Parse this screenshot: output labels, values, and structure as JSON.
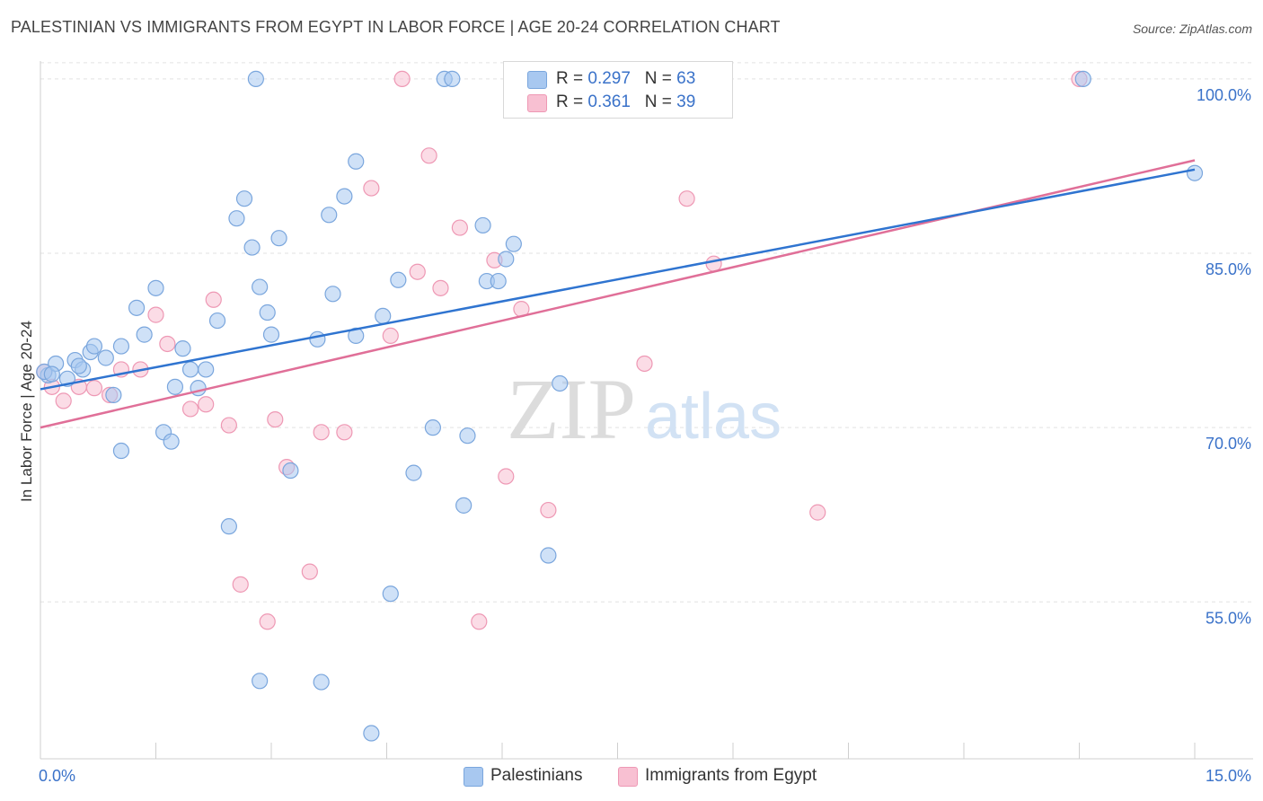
{
  "title": "PALESTINIAN VS IMMIGRANTS FROM EGYPT IN LABOR FORCE | AGE 20-24 CORRELATION CHART",
  "source": "Source: ZipAtlas.com",
  "watermark": {
    "zip": "ZIP",
    "atlas": "atlas"
  },
  "legend": {
    "rows": [
      {
        "r_label": "R = ",
        "r_value": "0.297",
        "n_label": "N = ",
        "n_value": "63",
        "color": "#a8c8f0"
      },
      {
        "r_label": "R = ",
        "r_value": "0.361",
        "n_label": "N = ",
        "n_value": "39",
        "color": "#f8b8cc"
      }
    ]
  },
  "colors": {
    "blue_fill": "#a8c8f0",
    "blue_stroke": "#7aa6dd",
    "blue_line": "#2f74d0",
    "pink_fill": "#f8c0d2",
    "pink_stroke": "#ee98b4",
    "pink_line": "#e06f98",
    "tick_label": "#3a72c9",
    "grid": "#e2e2e2"
  },
  "chart_data": {
    "type": "scatter",
    "title": "PALESTINIAN VS IMMIGRANTS FROM EGYPT IN LABOR FORCE | AGE 20-24 CORRELATION CHART",
    "xlabel": "",
    "ylabel": "In Labor Force | Age 20-24",
    "xlim": [
      0,
      15
    ],
    "ylim": [
      41.5,
      102
    ],
    "x_tick_labels": [
      "0.0%",
      "15.0%"
    ],
    "y_ticks": [
      55,
      70,
      85,
      100
    ],
    "y_tick_labels": [
      "55.0%",
      "70.0%",
      "85.0%",
      "100.0%"
    ],
    "grid": true,
    "legend_position": "top-center",
    "series": [
      {
        "name": "Palestinians",
        "color": "#a8c8f0",
        "trend": {
          "x": [
            0,
            15
          ],
          "y": [
            73.3,
            92.2
          ]
        },
        "points": [
          [
            0.1,
            74.5
          ],
          [
            0.2,
            75.5
          ],
          [
            0.35,
            74.2
          ],
          [
            0.45,
            75.8
          ],
          [
            0.55,
            75.0
          ],
          [
            0.65,
            76.5
          ],
          [
            0.7,
            77.0
          ],
          [
            0.85,
            76.0
          ],
          [
            0.95,
            72.8
          ],
          [
            1.05,
            68.0
          ],
          [
            1.25,
            80.3
          ],
          [
            1.35,
            78.0
          ],
          [
            1.5,
            82.0
          ],
          [
            1.6,
            69.6
          ],
          [
            1.7,
            68.8
          ],
          [
            1.75,
            73.5
          ],
          [
            1.85,
            76.8
          ],
          [
            1.95,
            75.0
          ],
          [
            2.05,
            73.4
          ],
          [
            2.15,
            75.0
          ],
          [
            2.3,
            79.2
          ],
          [
            2.45,
            61.5
          ],
          [
            2.55,
            88.0
          ],
          [
            2.65,
            89.7
          ],
          [
            2.75,
            85.5
          ],
          [
            2.85,
            82.1
          ],
          [
            2.95,
            79.9
          ],
          [
            3.0,
            78.0
          ],
          [
            2.8,
            100.0
          ],
          [
            2.85,
            48.2
          ],
          [
            3.1,
            86.3
          ],
          [
            3.25,
            66.3
          ],
          [
            3.6,
            77.6
          ],
          [
            3.65,
            48.1
          ],
          [
            3.8,
            81.5
          ],
          [
            3.75,
            88.3
          ],
          [
            3.95,
            89.9
          ],
          [
            4.1,
            77.9
          ],
          [
            4.1,
            92.9
          ],
          [
            4.3,
            43.7
          ],
          [
            4.45,
            79.6
          ],
          [
            4.55,
            55.7
          ],
          [
            4.65,
            82.7
          ],
          [
            4.85,
            66.1
          ],
          [
            5.1,
            70.0
          ],
          [
            5.25,
            100.0
          ],
          [
            5.35,
            100.0
          ],
          [
            5.5,
            63.3
          ],
          [
            5.55,
            69.3
          ],
          [
            5.75,
            87.4
          ],
          [
            5.8,
            82.6
          ],
          [
            5.95,
            82.6
          ],
          [
            6.05,
            84.5
          ],
          [
            6.15,
            85.8
          ],
          [
            6.6,
            59.0
          ],
          [
            6.75,
            73.8
          ],
          [
            7.0,
            100.0
          ],
          [
            13.55,
            100.0
          ],
          [
            15.0,
            91.9
          ],
          [
            0.05,
            74.8
          ],
          [
            0.15,
            74.6
          ],
          [
            1.05,
            77.0
          ],
          [
            0.5,
            75.3
          ]
        ]
      },
      {
        "name": "Immigrants from Egypt",
        "color": "#f8c0d2",
        "trend": {
          "x": [
            0,
            15
          ],
          "y": [
            70.0,
            93.0
          ]
        },
        "points": [
          [
            0.05,
            74.8
          ],
          [
            0.15,
            73.5
          ],
          [
            0.3,
            72.3
          ],
          [
            0.5,
            73.5
          ],
          [
            0.7,
            73.4
          ],
          [
            0.9,
            72.8
          ],
          [
            1.05,
            75.0
          ],
          [
            1.3,
            75.0
          ],
          [
            1.5,
            79.7
          ],
          [
            1.65,
            77.2
          ],
          [
            1.95,
            71.6
          ],
          [
            2.15,
            72.0
          ],
          [
            2.25,
            81.0
          ],
          [
            2.45,
            70.2
          ],
          [
            2.6,
            56.5
          ],
          [
            2.95,
            53.3
          ],
          [
            3.05,
            70.7
          ],
          [
            3.2,
            66.6
          ],
          [
            3.5,
            57.6
          ],
          [
            3.65,
            69.6
          ],
          [
            3.95,
            69.6
          ],
          [
            4.3,
            90.6
          ],
          [
            4.55,
            77.9
          ],
          [
            4.7,
            100.0
          ],
          [
            4.9,
            83.4
          ],
          [
            5.05,
            93.4
          ],
          [
            5.2,
            82.0
          ],
          [
            5.45,
            87.2
          ],
          [
            5.7,
            53.3
          ],
          [
            5.9,
            84.4
          ],
          [
            6.05,
            65.8
          ],
          [
            6.25,
            80.2
          ],
          [
            6.6,
            62.9
          ],
          [
            7.0,
            100.0
          ],
          [
            7.85,
            75.5
          ],
          [
            8.4,
            89.7
          ],
          [
            8.75,
            84.1
          ],
          [
            10.1,
            62.7
          ],
          [
            13.5,
            100.0
          ]
        ]
      }
    ]
  }
}
